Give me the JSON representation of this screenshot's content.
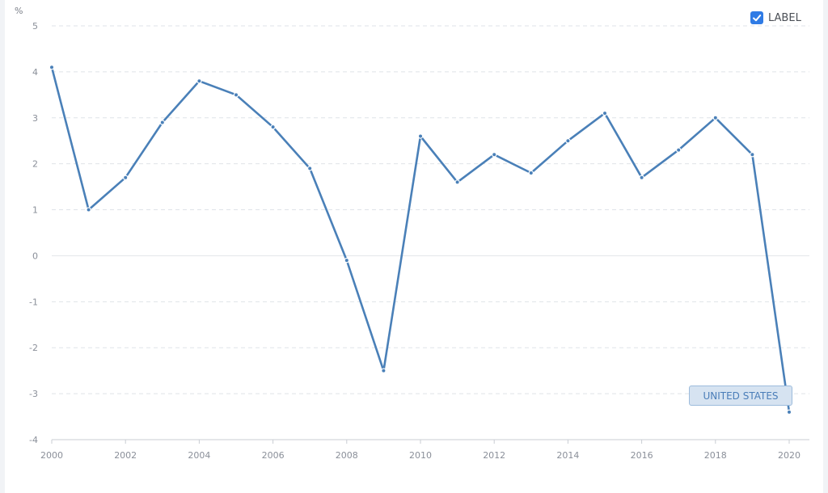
{
  "legend": {
    "label": "LABEL",
    "checked": true
  },
  "series_tag": "UNITED STATES",
  "colors": {
    "line": "#4a80b8",
    "grid": "#dfe3e8",
    "checkbox": "#2f7be5"
  },
  "chart_data": {
    "type": "line",
    "ylabel": "%",
    "ylim": [
      -4,
      5
    ],
    "yticks": [
      5,
      4,
      3,
      2,
      1,
      0,
      -1,
      -2,
      -3,
      -4
    ],
    "xlim": [
      2000,
      2020
    ],
    "xticks": [
      2000,
      2002,
      2004,
      2006,
      2008,
      2010,
      2012,
      2014,
      2016,
      2018,
      2020
    ],
    "grid": true,
    "legend_position": "top-right",
    "series": [
      {
        "name": "UNITED STATES",
        "x": [
          2000,
          2001,
          2002,
          2003,
          2004,
          2005,
          2006,
          2007,
          2008,
          2009,
          2010,
          2011,
          2012,
          2013,
          2014,
          2015,
          2016,
          2017,
          2018,
          2019,
          2020
        ],
        "values": [
          4.1,
          1.0,
          1.7,
          2.9,
          3.8,
          3.5,
          2.8,
          1.9,
          -0.1,
          -2.5,
          2.6,
          1.6,
          2.2,
          1.8,
          2.5,
          3.1,
          1.7,
          2.3,
          3.0,
          2.2,
          -3.4
        ]
      }
    ]
  }
}
